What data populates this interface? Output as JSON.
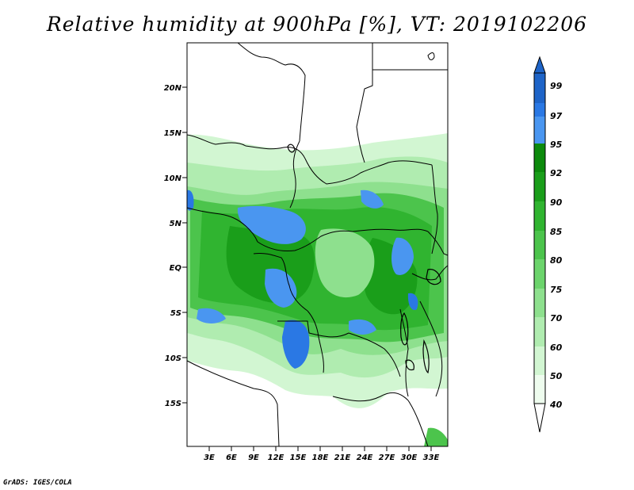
{
  "title": "Relative humidity at 900hPa [%], VT: 2019102206",
  "credit": "GrADS: IGES/COLA",
  "map": {
    "lat_labels": [
      "20N",
      "15N",
      "10N",
      "5N",
      "EQ",
      "5S",
      "10S",
      "15S"
    ],
    "lon_labels": [
      "3E",
      "6E",
      "9E",
      "12E",
      "15E",
      "18E",
      "21E",
      "24E",
      "27E",
      "30E",
      "33E"
    ]
  },
  "colorbar": {
    "levels": [
      "99",
      "97",
      "95",
      "92",
      "90",
      "85",
      "80",
      "75",
      "70",
      "60",
      "50",
      "40"
    ],
    "colors": [
      "#1e64c8",
      "#2a78e4",
      "#4a96f0",
      "#0c8a0c",
      "#1a9e1a",
      "#30b430",
      "#4cc44c",
      "#6cd46c",
      "#8ee08e",
      "#b0ecb0",
      "#d2f6d2",
      "#eefcee",
      "#ffffff"
    ]
  }
}
